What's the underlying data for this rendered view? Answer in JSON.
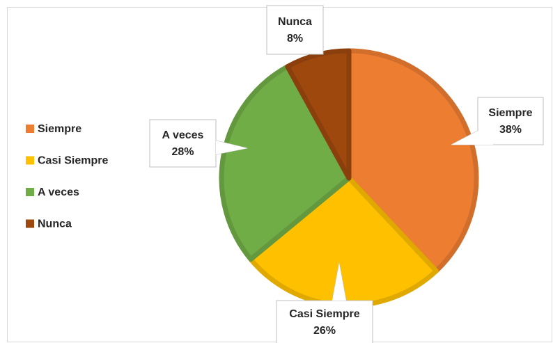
{
  "chart_data": {
    "type": "pie",
    "categories": [
      "Siempre",
      "Casi Siempre",
      "A veces",
      "Nunca"
    ],
    "values": [
      38,
      26,
      28,
      8
    ],
    "value_labels": [
      "38%",
      "26%",
      "28%",
      "8%"
    ],
    "colors": [
      "#ED7D31",
      "#FFC000",
      "#70AD47",
      "#9E480E"
    ],
    "legend": "left"
  }
}
